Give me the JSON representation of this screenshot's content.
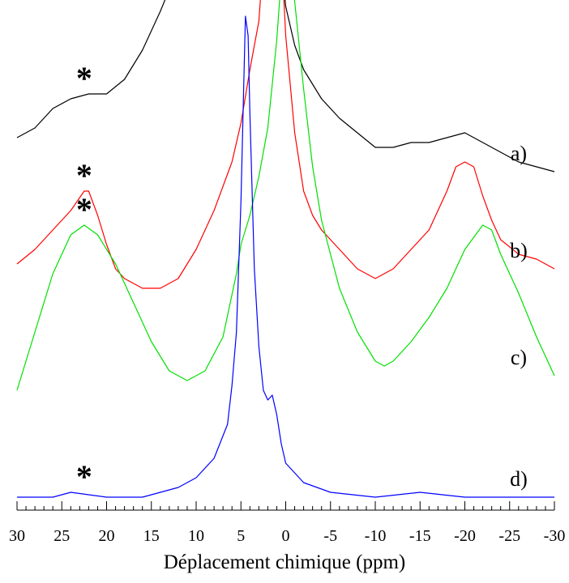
{
  "chart_data": {
    "type": "line",
    "title": "",
    "xlabel": "Déplacement chimique (ppm)",
    "ylabel": "",
    "xlim": [
      30,
      -30
    ],
    "x_reversed": true,
    "xticks": [
      30,
      25,
      20,
      15,
      10,
      5,
      0,
      -5,
      -10,
      -15,
      -20,
      -25,
      -30
    ],
    "xtick_labels": [
      "30",
      "25",
      "20",
      "15",
      "10",
      "5",
      "0",
      "-5",
      "-10",
      "-15",
      "-20",
      "-25",
      "-30"
    ],
    "grid": false,
    "legend": "none",
    "y_units": "relative intensity (stacked, offset)",
    "series": [
      {
        "name": "a)",
        "color": "#000000",
        "offset": 0.72,
        "marker_x": 22.5,
        "marker_text": "*",
        "points": [
          [
            30,
            0.03
          ],
          [
            28,
            0.05
          ],
          [
            26,
            0.09
          ],
          [
            24,
            0.11
          ],
          [
            22,
            0.12
          ],
          [
            20,
            0.12
          ],
          [
            18,
            0.15
          ],
          [
            16,
            0.21
          ],
          [
            14,
            0.29
          ],
          [
            12,
            0.38
          ],
          [
            10,
            0.5
          ],
          [
            8.5,
            0.64
          ],
          [
            7,
            0.82
          ],
          [
            6,
            0.96
          ],
          [
            5.5,
            1.0
          ],
          [
            5,
            0.97
          ],
          [
            4.5,
            0.86
          ],
          [
            3.5,
            0.74
          ],
          [
            3,
            0.67
          ],
          [
            2.5,
            0.6
          ],
          [
            2.2,
            0.61
          ],
          [
            2,
            0.57
          ],
          [
            1.5,
            0.53
          ],
          [
            1,
            0.48
          ],
          [
            0.5,
            0.39
          ],
          [
            0,
            0.3
          ],
          [
            -1,
            0.22
          ],
          [
            -2,
            0.17
          ],
          [
            -4,
            0.11
          ],
          [
            -6,
            0.07
          ],
          [
            -8,
            0.04
          ],
          [
            -10,
            0.01
          ],
          [
            -12,
            0.01
          ],
          [
            -14,
            0.02
          ],
          [
            -16,
            0.02
          ],
          [
            -18,
            0.03
          ],
          [
            -20,
            0.04
          ],
          [
            -22,
            0.02
          ],
          [
            -24,
            0.0
          ],
          [
            -26,
            -0.02
          ],
          [
            -28,
            -0.03
          ],
          [
            -30,
            -0.04
          ]
        ]
      },
      {
        "name": "b)",
        "color": "#ff0000",
        "offset": 0.44,
        "marker_x": 22.5,
        "marker_text": "*",
        "points": [
          [
            30,
            0.05
          ],
          [
            28,
            0.08
          ],
          [
            26,
            0.12
          ],
          [
            24,
            0.16
          ],
          [
            22.5,
            0.2
          ],
          [
            22,
            0.2
          ],
          [
            21,
            0.15
          ],
          [
            20,
            0.09
          ],
          [
            19,
            0.04
          ],
          [
            18,
            0.02
          ],
          [
            16,
            0.0
          ],
          [
            14,
            0.0
          ],
          [
            12,
            0.02
          ],
          [
            10,
            0.08
          ],
          [
            8,
            0.16
          ],
          [
            6,
            0.26
          ],
          [
            5,
            0.34
          ],
          [
            4,
            0.45
          ],
          [
            3,
            0.55
          ],
          [
            2.5,
            0.68
          ],
          [
            2,
            0.87
          ],
          [
            1.7,
            1.0
          ],
          [
            1.3,
            0.98
          ],
          [
            1,
            0.9
          ],
          [
            0.5,
            0.7
          ],
          [
            0,
            0.52
          ],
          [
            -1,
            0.32
          ],
          [
            -2,
            0.2
          ],
          [
            -3,
            0.15
          ],
          [
            -4,
            0.12
          ],
          [
            -6,
            0.08
          ],
          [
            -8,
            0.04
          ],
          [
            -10,
            0.02
          ],
          [
            -12,
            0.04
          ],
          [
            -14,
            0.08
          ],
          [
            -16,
            0.12
          ],
          [
            -18,
            0.2
          ],
          [
            -19,
            0.25
          ],
          [
            -20,
            0.26
          ],
          [
            -21,
            0.25
          ],
          [
            -22,
            0.19
          ],
          [
            -23,
            0.14
          ],
          [
            -24,
            0.1
          ],
          [
            -26,
            0.07
          ],
          [
            -28,
            0.06
          ],
          [
            -30,
            0.04
          ]
        ]
      },
      {
        "name": "c)",
        "color": "#00e000",
        "offset": 0.23,
        "marker_x": 22.5,
        "marker_text": "*",
        "points": [
          [
            30,
            0.0
          ],
          [
            28,
            0.12
          ],
          [
            26,
            0.24
          ],
          [
            24,
            0.32
          ],
          [
            22.5,
            0.34
          ],
          [
            21,
            0.32
          ],
          [
            19,
            0.26
          ],
          [
            17,
            0.18
          ],
          [
            15,
            0.1
          ],
          [
            13,
            0.04
          ],
          [
            11,
            0.02
          ],
          [
            9,
            0.04
          ],
          [
            7,
            0.11
          ],
          [
            5.5,
            0.24
          ],
          [
            5,
            0.3
          ],
          [
            4,
            0.36
          ],
          [
            3,
            0.44
          ],
          [
            2,
            0.54
          ],
          [
            1,
            0.72
          ],
          [
            0.5,
            0.85
          ],
          [
            0,
            0.88
          ],
          [
            -0.5,
            0.87
          ],
          [
            -1,
            0.8
          ],
          [
            -2,
            0.62
          ],
          [
            -3,
            0.46
          ],
          [
            -4,
            0.35
          ],
          [
            -6,
            0.21
          ],
          [
            -8,
            0.12
          ],
          [
            -10,
            0.06
          ],
          [
            -11,
            0.05
          ],
          [
            -12,
            0.06
          ],
          [
            -14,
            0.1
          ],
          [
            -16,
            0.15
          ],
          [
            -18,
            0.21
          ],
          [
            -20,
            0.29
          ],
          [
            -22,
            0.34
          ],
          [
            -23,
            0.33
          ],
          [
            -24,
            0.28
          ],
          [
            -26,
            0.2
          ],
          [
            -28,
            0.11
          ],
          [
            -30,
            0.03
          ]
        ]
      },
      {
        "name": "d)",
        "color": "#0000ff",
        "offset": 0.0,
        "marker_x": 22.5,
        "marker_text": "*",
        "points": [
          [
            30,
            0.01
          ],
          [
            26,
            0.01
          ],
          [
            24,
            0.02
          ],
          [
            20,
            0.01
          ],
          [
            16,
            0.01
          ],
          [
            12,
            0.03
          ],
          [
            10,
            0.05
          ],
          [
            8,
            0.09
          ],
          [
            6.5,
            0.16
          ],
          [
            6,
            0.24
          ],
          [
            5.5,
            0.35
          ],
          [
            5,
            0.62
          ],
          [
            4.7,
            0.85
          ],
          [
            4.5,
            1.0
          ],
          [
            4.2,
            0.96
          ],
          [
            4,
            0.8
          ],
          [
            3.5,
            0.48
          ],
          [
            3,
            0.32
          ],
          [
            2.5,
            0.23
          ],
          [
            2,
            0.21
          ],
          [
            1.5,
            0.22
          ],
          [
            1,
            0.18
          ],
          [
            0.5,
            0.12
          ],
          [
            0,
            0.08
          ],
          [
            -2,
            0.04
          ],
          [
            -5,
            0.02
          ],
          [
            -10,
            0.01
          ],
          [
            -15,
            0.02
          ],
          [
            -20,
            0.01
          ],
          [
            -25,
            0.01
          ],
          [
            -30,
            0.01
          ]
        ]
      }
    ]
  }
}
